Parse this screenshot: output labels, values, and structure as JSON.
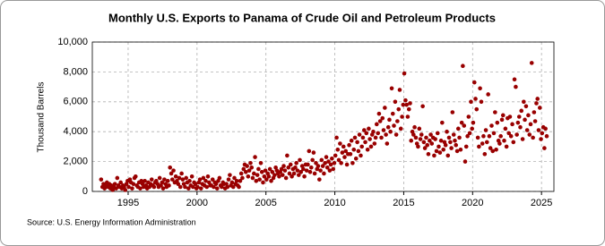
{
  "chart_data": {
    "type": "scatter",
    "title": "Monthly U.S. Exports to Panama of Crude Oil and Petroleum Products",
    "y_label": "Thousand Barrels",
    "source": "Source: U.S. Energy Information Administration",
    "xlim": [
      1992.4,
      2025.9
    ],
    "xticks": [
      1995,
      2000,
      2005,
      2010,
      2015,
      2020,
      2025
    ],
    "ylim": [
      0,
      10000
    ],
    "yticks": [
      {
        "value": 0,
        "label": "0"
      },
      {
        "value": 2000,
        "label": "2,000"
      },
      {
        "value": 4000,
        "label": "4,000"
      },
      {
        "value": 6000,
        "label": "6,000"
      },
      {
        "value": 8000,
        "label": "8,000"
      },
      {
        "value": 10000,
        "label": "10,000"
      }
    ],
    "grid": true,
    "color": "#990000",
    "x": [
      1993.04,
      1993.13,
      1993.21,
      1993.29,
      1993.38,
      1993.46,
      1993.54,
      1993.63,
      1993.71,
      1993.79,
      1993.88,
      1993.96,
      1994.04,
      1994.13,
      1994.21,
      1994.29,
      1994.38,
      1994.46,
      1994.54,
      1994.63,
      1994.71,
      1994.79,
      1994.88,
      1994.96,
      1995.04,
      1995.13,
      1995.21,
      1995.29,
      1995.38,
      1995.46,
      1995.54,
      1995.63,
      1995.71,
      1995.79,
      1995.88,
      1995.96,
      1996.04,
      1996.13,
      1996.21,
      1996.29,
      1996.38,
      1996.46,
      1996.54,
      1996.63,
      1996.71,
      1996.79,
      1996.88,
      1996.96,
      1997.04,
      1997.13,
      1997.21,
      1997.29,
      1997.38,
      1997.46,
      1997.54,
      1997.63,
      1997.71,
      1997.79,
      1997.88,
      1997.96,
      1998.04,
      1998.13,
      1998.21,
      1998.29,
      1998.38,
      1998.46,
      1998.54,
      1998.63,
      1998.71,
      1998.79,
      1998.88,
      1998.96,
      1999.04,
      1999.13,
      1999.21,
      1999.29,
      1999.38,
      1999.46,
      1999.54,
      1999.63,
      1999.71,
      1999.79,
      1999.88,
      1999.96,
      2000.04,
      2000.13,
      2000.21,
      2000.29,
      2000.38,
      2000.46,
      2000.54,
      2000.63,
      2000.71,
      2000.79,
      2000.88,
      2000.96,
      2001.04,
      2001.13,
      2001.21,
      2001.29,
      2001.38,
      2001.46,
      2001.54,
      2001.63,
      2001.71,
      2001.79,
      2001.88,
      2001.96,
      2002.04,
      2002.13,
      2002.21,
      2002.29,
      2002.38,
      2002.46,
      2002.54,
      2002.63,
      2002.71,
      2002.79,
      2002.88,
      2002.96,
      2003.04,
      2003.13,
      2003.21,
      2003.29,
      2003.38,
      2003.46,
      2003.54,
      2003.63,
      2003.71,
      2003.79,
      2003.88,
      2003.96,
      2004.04,
      2004.13,
      2004.21,
      2004.29,
      2004.38,
      2004.46,
      2004.54,
      2004.63,
      2004.71,
      2004.79,
      2004.88,
      2004.96,
      2005.04,
      2005.13,
      2005.21,
      2005.29,
      2005.38,
      2005.46,
      2005.54,
      2005.63,
      2005.71,
      2005.79,
      2005.88,
      2005.96,
      2006.04,
      2006.13,
      2006.21,
      2006.29,
      2006.38,
      2006.46,
      2006.54,
      2006.63,
      2006.71,
      2006.79,
      2006.88,
      2006.96,
      2007.04,
      2007.13,
      2007.21,
      2007.29,
      2007.38,
      2007.46,
      2007.54,
      2007.63,
      2007.71,
      2007.79,
      2007.88,
      2007.96,
      2008.04,
      2008.13,
      2008.21,
      2008.29,
      2008.38,
      2008.46,
      2008.54,
      2008.63,
      2008.71,
      2008.79,
      2008.88,
      2008.96,
      2009.04,
      2009.13,
      2009.21,
      2009.29,
      2009.38,
      2009.46,
      2009.54,
      2009.63,
      2009.71,
      2009.79,
      2009.88,
      2009.96,
      2010.04,
      2010.13,
      2010.21,
      2010.29,
      2010.38,
      2010.46,
      2010.54,
      2010.63,
      2010.71,
      2010.79,
      2010.88,
      2010.96,
      2011.04,
      2011.13,
      2011.21,
      2011.29,
      2011.38,
      2011.46,
      2011.54,
      2011.63,
      2011.71,
      2011.79,
      2011.88,
      2011.96,
      2012.04,
      2012.13,
      2012.21,
      2012.29,
      2012.38,
      2012.46,
      2012.54,
      2012.63,
      2012.71,
      2012.79,
      2012.88,
      2012.96,
      2013.04,
      2013.13,
      2013.21,
      2013.29,
      2013.38,
      2013.46,
      2013.54,
      2013.63,
      2013.71,
      2013.79,
      2013.88,
      2013.96,
      2014.04,
      2014.13,
      2014.21,
      2014.29,
      2014.38,
      2014.46,
      2014.54,
      2014.63,
      2014.71,
      2014.79,
      2014.88,
      2014.96,
      2015.04,
      2015.13,
      2015.21,
      2015.29,
      2015.38,
      2015.46,
      2015.54,
      2015.63,
      2015.71,
      2015.79,
      2015.88,
      2015.96,
      2016.04,
      2016.13,
      2016.21,
      2016.29,
      2016.38,
      2016.46,
      2016.54,
      2016.63,
      2016.71,
      2016.79,
      2016.88,
      2016.96,
      2017.04,
      2017.13,
      2017.21,
      2017.29,
      2017.38,
      2017.46,
      2017.54,
      2017.63,
      2017.71,
      2017.79,
      2017.88,
      2017.96,
      2018.04,
      2018.13,
      2018.21,
      2018.29,
      2018.38,
      2018.46,
      2018.54,
      2018.63,
      2018.71,
      2018.79,
      2018.88,
      2018.96,
      2019.04,
      2019.13,
      2019.21,
      2019.29,
      2019.38,
      2019.46,
      2019.54,
      2019.63,
      2019.71,
      2019.79,
      2019.88,
      2019.96,
      2020.04,
      2020.13,
      2020.21,
      2020.29,
      2020.38,
      2020.46,
      2020.54,
      2020.63,
      2020.71,
      2020.79,
      2020.88,
      2020.96,
      2021.04,
      2021.13,
      2021.21,
      2021.29,
      2021.38,
      2021.46,
      2021.54,
      2021.63,
      2021.71,
      2021.79,
      2021.88,
      2021.96,
      2022.04,
      2022.13,
      2022.21,
      2022.29,
      2022.38,
      2022.46,
      2022.54,
      2022.63,
      2022.71,
      2022.79,
      2022.88,
      2022.96,
      2023.04,
      2023.13,
      2023.21,
      2023.29,
      2023.38,
      2023.46,
      2023.54,
      2023.63,
      2023.71,
      2023.79,
      2023.88,
      2023.96,
      2024.04,
      2024.13,
      2024.21,
      2024.29,
      2024.38,
      2024.46,
      2024.54,
      2024.63,
      2024.71,
      2024.79,
      2024.88,
      2024.96,
      2025.04,
      2025.13,
      2025.21,
      2025.29,
      2025.38
    ],
    "values": [
      800,
      300,
      500,
      200,
      400,
      600,
      300,
      500,
      200,
      400,
      100,
      300,
      500,
      200,
      900,
      400,
      300,
      600,
      200,
      400,
      300,
      100,
      500,
      700,
      300,
      800,
      600,
      200,
      500,
      900,
      1000,
      400,
      300,
      600,
      200,
      700,
      500,
      300,
      700,
      400,
      200,
      600,
      300,
      500,
      800,
      400,
      300,
      600,
      700,
      500,
      300,
      900,
      400,
      600,
      200,
      800,
      500,
      300,
      700,
      400,
      1600,
      1200,
      800,
      1400,
      600,
      1000,
      700,
      500,
      900,
      300,
      1200,
      800,
      500,
      300,
      900,
      600,
      200,
      700,
      400,
      1000,
      300,
      600,
      500,
      200,
      300,
      600,
      800,
      200,
      500,
      900,
      400,
      700,
      300,
      1000,
      600,
      400,
      400,
      800,
      300,
      600,
      500,
      200,
      700,
      900,
      400,
      300,
      600,
      500,
      200,
      500,
      300,
      800,
      1100,
      400,
      600,
      300,
      900,
      500,
      700,
      400,
      300,
      700,
      1200,
      900,
      1500,
      1800,
      1300,
      1700,
      1000,
      1400,
      1900,
      1600,
      900,
      1200,
      2300,
      700,
      1100,
      1500,
      800,
      1900,
      1300,
      600,
      1000,
      1400,
      800,
      1200,
      1000,
      1500,
      700,
      1300,
      900,
      1100,
      1600,
      1400,
      1200,
      1000,
      1300,
      1500,
      1100,
      1700,
      1400,
      900,
      2400,
      1600,
      1200,
      1800,
      1000,
      1500,
      1200,
      1600,
      1900,
      1400,
      1100,
      2100,
      1300,
      1700,
      1500,
      1000,
      1800,
      1400,
      1800,
      2700,
      1300,
      1600,
      2100,
      2600,
      1200,
      1900,
      1500,
      1700,
      800,
      1400,
      2100,
      1700,
      1200,
      1900,
      2300,
      1600,
      2000,
      1400,
      1800,
      2200,
      1500,
      1900,
      2400,
      3600,
      2800,
      2100,
      3200,
      1900,
      2600,
      3000,
      2300,
      2700,
      1800,
      2500,
      3100,
      2500,
      3400,
      1900,
      2800,
      3600,
      2200,
      3300,
      2700,
      3800,
      2400,
      3000,
      3600,
      4100,
      3300,
      3900,
      2800,
      4200,
      3500,
      3000,
      3800,
      4000,
      3200,
      3600,
      4500,
      3900,
      5200,
      4700,
      3600,
      4900,
      4100,
      5600,
      3800,
      3200,
      4300,
      4800,
      4000,
      6900,
      5200,
      4400,
      6000,
      3800,
      4700,
      5500,
      6800,
      4200,
      5000,
      5800,
      7900,
      6100,
      5800,
      5000,
      5500,
      5900,
      3400,
      4000,
      3800,
      4300,
      3600,
      3200,
      3000,
      4200,
      3500,
      3800,
      5700,
      3300,
      2900,
      3600,
      3100,
      2500,
      3400,
      3800,
      3200,
      3600,
      2400,
      3500,
      2700,
      3900,
      3000,
      2600,
      3400,
      4600,
      2800,
      3300,
      3100,
      4000,
      2400,
      3600,
      3300,
      2900,
      5300,
      3800,
      3400,
      3100,
      2700,
      4200,
      3600,
      2800,
      4600,
      8400,
      4400,
      2000,
      3000,
      3700,
      5000,
      3900,
      6000,
      4200,
      4600,
      7300,
      6200,
      5500,
      3600,
      3000,
      6900,
      6000,
      3200,
      3700,
      2500,
      4100,
      3300,
      6500,
      3700,
      2900,
      4400,
      2700,
      3900,
      5300,
      2800,
      4600,
      3400,
      3200,
      3700,
      4800,
      5100,
      3400,
      4200,
      3000,
      4900,
      3900,
      5000,
      3700,
      4500,
      3300,
      7500,
      7000,
      3800,
      4600,
      5000,
      4300,
      5400,
      3500,
      6000,
      4800,
      5700,
      4100,
      5100,
      3800,
      4500,
      8600,
      3600,
      5300,
      4700,
      5900,
      6200,
      4100,
      5600,
      3500,
      3900,
      4300,
      2900,
      4200,
      3700
    ]
  }
}
